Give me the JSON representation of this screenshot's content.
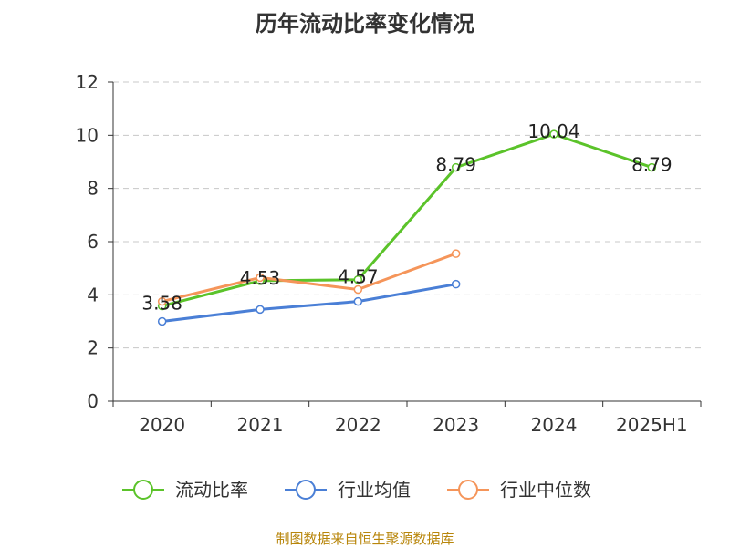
{
  "title": "历年流动比率变化情况",
  "footer": "制图数据来自恒生聚源数据库",
  "chart_data": {
    "type": "line",
    "categories": [
      "2020",
      "2021",
      "2022",
      "2023",
      "2024",
      "2025H1"
    ],
    "ylim": [
      0,
      12
    ],
    "yticks": [
      0,
      2,
      4,
      6,
      8,
      10,
      12
    ],
    "grid": true,
    "legend_position": "bottom",
    "series": [
      {
        "name": "流动比率",
        "color": "#5bc32a",
        "values": [
          3.58,
          4.53,
          4.57,
          8.79,
          10.04,
          8.79
        ],
        "labels": [
          "3.58",
          "4.53",
          "4.57",
          "8.79",
          "10.04",
          "8.79"
        ]
      },
      {
        "name": "行业均值",
        "color": "#4a7fd6",
        "values": [
          3.0,
          3.45,
          3.75,
          4.4,
          null,
          null
        ]
      },
      {
        "name": "行业中位数",
        "color": "#f5955a",
        "values": [
          3.75,
          4.65,
          4.2,
          5.55,
          null,
          null
        ]
      }
    ]
  }
}
